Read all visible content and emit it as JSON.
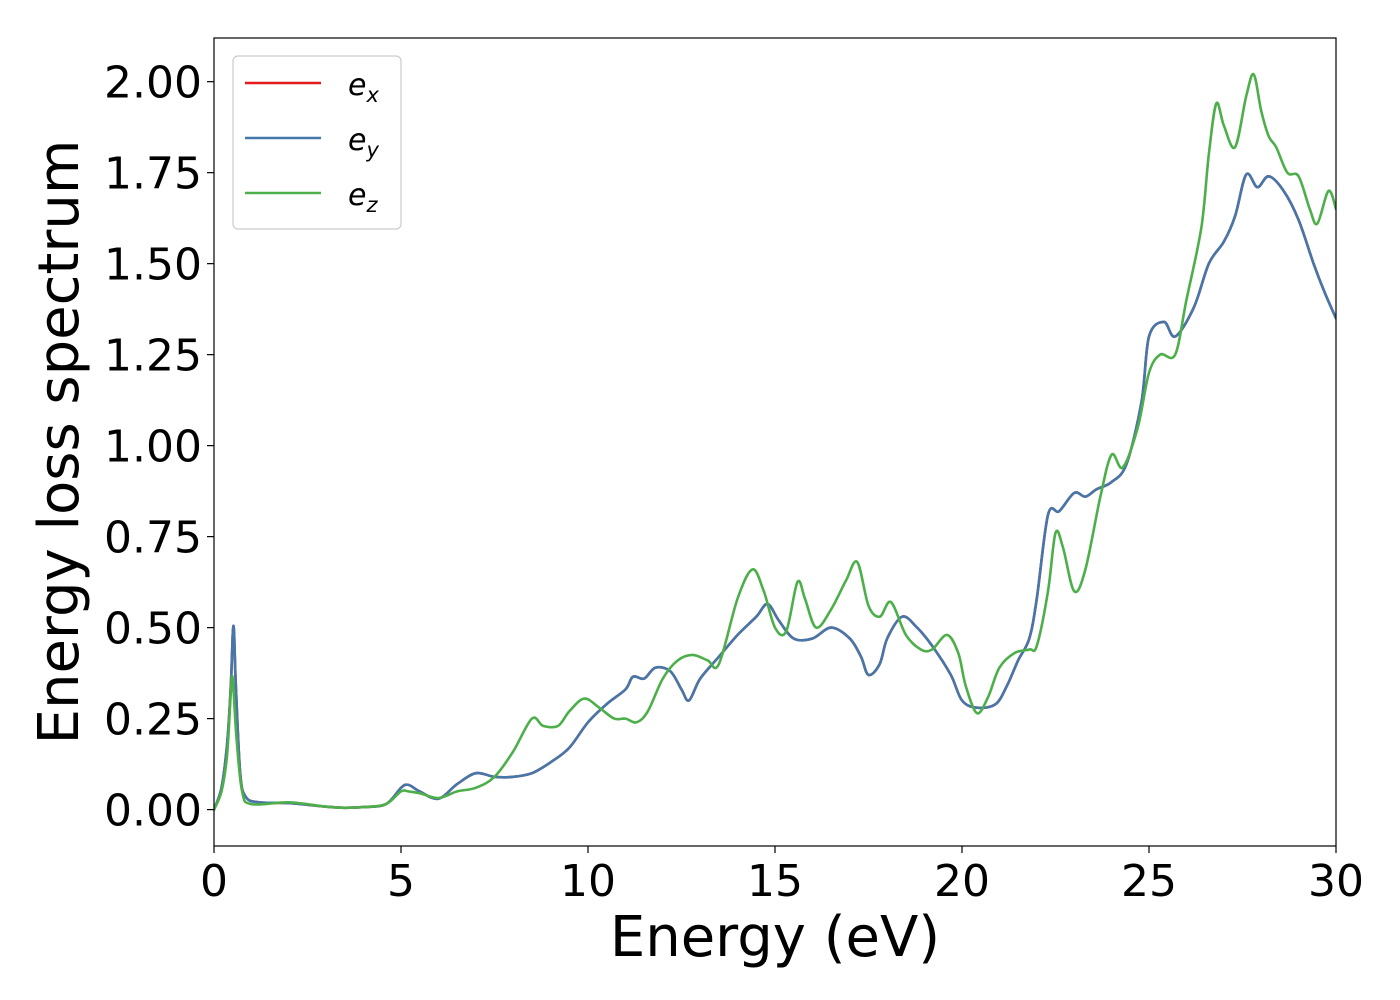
{
  "chart_data": {
    "type": "line",
    "xlabel": "Energy (eV)",
    "ylabel": "Energy loss spectrum",
    "xlim": [
      0,
      30
    ],
    "ylim": [
      -0.1,
      2.12
    ],
    "xticks": [
      0,
      5,
      10,
      15,
      20,
      25,
      30
    ],
    "xtick_labels": [
      "0",
      "5",
      "10",
      "15",
      "20",
      "25",
      "30"
    ],
    "yticks": [
      0,
      0.25,
      0.5,
      0.75,
      1.0,
      1.25,
      1.5,
      1.75,
      2.0
    ],
    "ytick_labels": [
      "0.00",
      "0.25",
      "0.50",
      "0.75",
      "1.00",
      "1.25",
      "1.50",
      "1.75",
      "2.00"
    ],
    "grid": false,
    "legend_position": "top-left",
    "series": [
      {
        "name": "ex",
        "legend_base": "e",
        "legend_sub": "x",
        "color": "#e41a1c",
        "points": [
          [
            0,
            0
          ],
          [
            0.2,
            0.06
          ],
          [
            0.35,
            0.18
          ],
          [
            0.45,
            0.34
          ],
          [
            0.52,
            0.505
          ],
          [
            0.58,
            0.35
          ],
          [
            0.7,
            0.1
          ],
          [
            0.85,
            0.035
          ],
          [
            1.2,
            0.02
          ],
          [
            2,
            0.018
          ],
          [
            3,
            0.008
          ],
          [
            3.5,
            0.005
          ],
          [
            4,
            0.007
          ],
          [
            4.6,
            0.015
          ],
          [
            5.0,
            0.06
          ],
          [
            5.2,
            0.068
          ],
          [
            5.5,
            0.05
          ],
          [
            6.0,
            0.03
          ],
          [
            6.5,
            0.07
          ],
          [
            7.0,
            0.1
          ],
          [
            7.5,
            0.09
          ],
          [
            8.0,
            0.09
          ],
          [
            8.5,
            0.1
          ],
          [
            9.0,
            0.13
          ],
          [
            9.5,
            0.17
          ],
          [
            10.0,
            0.24
          ],
          [
            10.5,
            0.29
          ],
          [
            11.0,
            0.33
          ],
          [
            11.2,
            0.365
          ],
          [
            11.5,
            0.36
          ],
          [
            11.8,
            0.39
          ],
          [
            12.2,
            0.38
          ],
          [
            12.5,
            0.33
          ],
          [
            12.7,
            0.3
          ],
          [
            13.0,
            0.36
          ],
          [
            13.5,
            0.42
          ],
          [
            14.0,
            0.48
          ],
          [
            14.5,
            0.53
          ],
          [
            14.8,
            0.565
          ],
          [
            15.1,
            0.52
          ],
          [
            15.5,
            0.47
          ],
          [
            16.0,
            0.47
          ],
          [
            16.5,
            0.5
          ],
          [
            17.0,
            0.47
          ],
          [
            17.3,
            0.42
          ],
          [
            17.5,
            0.37
          ],
          [
            17.8,
            0.4
          ],
          [
            18.0,
            0.47
          ],
          [
            18.4,
            0.53
          ],
          [
            18.8,
            0.5
          ],
          [
            19.2,
            0.45
          ],
          [
            19.7,
            0.37
          ],
          [
            20.0,
            0.3
          ],
          [
            20.4,
            0.28
          ],
          [
            20.9,
            0.29
          ],
          [
            21.2,
            0.34
          ],
          [
            21.5,
            0.41
          ],
          [
            21.8,
            0.47
          ],
          [
            22.0,
            0.58
          ],
          [
            22.3,
            0.81
          ],
          [
            22.6,
            0.82
          ],
          [
            23.0,
            0.87
          ],
          [
            23.3,
            0.86
          ],
          [
            23.6,
            0.88
          ],
          [
            24.0,
            0.9
          ],
          [
            24.4,
            0.95
          ],
          [
            24.8,
            1.12
          ],
          [
            25.0,
            1.3
          ],
          [
            25.4,
            1.34
          ],
          [
            25.7,
            1.3
          ],
          [
            26.2,
            1.38
          ],
          [
            26.6,
            1.5
          ],
          [
            27.0,
            1.56
          ],
          [
            27.3,
            1.63
          ],
          [
            27.6,
            1.745
          ],
          [
            27.9,
            1.71
          ],
          [
            28.2,
            1.74
          ],
          [
            28.6,
            1.7
          ],
          [
            29.0,
            1.62
          ],
          [
            29.4,
            1.5
          ],
          [
            29.7,
            1.42
          ],
          [
            30.0,
            1.35
          ]
        ]
      },
      {
        "name": "ey",
        "legend_base": "e",
        "legend_sub": "y",
        "color": "#4477aa",
        "points": [
          [
            0,
            0
          ],
          [
            0.2,
            0.06
          ],
          [
            0.35,
            0.18
          ],
          [
            0.45,
            0.34
          ],
          [
            0.52,
            0.505
          ],
          [
            0.58,
            0.35
          ],
          [
            0.7,
            0.1
          ],
          [
            0.85,
            0.035
          ],
          [
            1.2,
            0.02
          ],
          [
            2,
            0.018
          ],
          [
            3,
            0.008
          ],
          [
            3.5,
            0.005
          ],
          [
            4,
            0.007
          ],
          [
            4.6,
            0.015
          ],
          [
            5.0,
            0.06
          ],
          [
            5.2,
            0.068
          ],
          [
            5.5,
            0.05
          ],
          [
            6.0,
            0.03
          ],
          [
            6.5,
            0.07
          ],
          [
            7.0,
            0.1
          ],
          [
            7.5,
            0.09
          ],
          [
            8.0,
            0.09
          ],
          [
            8.5,
            0.1
          ],
          [
            9.0,
            0.13
          ],
          [
            9.5,
            0.17
          ],
          [
            10.0,
            0.24
          ],
          [
            10.5,
            0.29
          ],
          [
            11.0,
            0.33
          ],
          [
            11.2,
            0.365
          ],
          [
            11.5,
            0.36
          ],
          [
            11.8,
            0.39
          ],
          [
            12.2,
            0.38
          ],
          [
            12.5,
            0.33
          ],
          [
            12.7,
            0.3
          ],
          [
            13.0,
            0.36
          ],
          [
            13.5,
            0.42
          ],
          [
            14.0,
            0.48
          ],
          [
            14.5,
            0.53
          ],
          [
            14.8,
            0.565
          ],
          [
            15.1,
            0.52
          ],
          [
            15.5,
            0.47
          ],
          [
            16.0,
            0.47
          ],
          [
            16.5,
            0.5
          ],
          [
            17.0,
            0.47
          ],
          [
            17.3,
            0.42
          ],
          [
            17.5,
            0.37
          ],
          [
            17.8,
            0.4
          ],
          [
            18.0,
            0.47
          ],
          [
            18.4,
            0.53
          ],
          [
            18.8,
            0.5
          ],
          [
            19.2,
            0.45
          ],
          [
            19.7,
            0.37
          ],
          [
            20.0,
            0.3
          ],
          [
            20.4,
            0.28
          ],
          [
            20.9,
            0.29
          ],
          [
            21.2,
            0.34
          ],
          [
            21.5,
            0.41
          ],
          [
            21.8,
            0.47
          ],
          [
            22.0,
            0.58
          ],
          [
            22.3,
            0.81
          ],
          [
            22.6,
            0.82
          ],
          [
            23.0,
            0.87
          ],
          [
            23.3,
            0.86
          ],
          [
            23.6,
            0.88
          ],
          [
            24.0,
            0.9
          ],
          [
            24.4,
            0.95
          ],
          [
            24.8,
            1.12
          ],
          [
            25.0,
            1.3
          ],
          [
            25.4,
            1.34
          ],
          [
            25.7,
            1.3
          ],
          [
            26.2,
            1.38
          ],
          [
            26.6,
            1.5
          ],
          [
            27.0,
            1.56
          ],
          [
            27.3,
            1.63
          ],
          [
            27.6,
            1.745
          ],
          [
            27.9,
            1.71
          ],
          [
            28.2,
            1.74
          ],
          [
            28.6,
            1.7
          ],
          [
            29.0,
            1.62
          ],
          [
            29.4,
            1.5
          ],
          [
            29.7,
            1.42
          ],
          [
            30.0,
            1.35
          ]
        ]
      },
      {
        "name": "ez",
        "legend_base": "e",
        "legend_sub": "z",
        "color": "#4daf4a",
        "points": [
          [
            0,
            0
          ],
          [
            0.2,
            0.05
          ],
          [
            0.35,
            0.15
          ],
          [
            0.45,
            0.32
          ],
          [
            0.5,
            0.36
          ],
          [
            0.6,
            0.2
          ],
          [
            0.75,
            0.05
          ],
          [
            1.0,
            0.015
          ],
          [
            2,
            0.02
          ],
          [
            3,
            0.008
          ],
          [
            3.5,
            0.005
          ],
          [
            4,
            0.007
          ],
          [
            4.6,
            0.015
          ],
          [
            5.0,
            0.05
          ],
          [
            5.2,
            0.05
          ],
          [
            5.5,
            0.045
          ],
          [
            6.0,
            0.032
          ],
          [
            6.5,
            0.05
          ],
          [
            7.0,
            0.06
          ],
          [
            7.5,
            0.09
          ],
          [
            8.0,
            0.16
          ],
          [
            8.5,
            0.25
          ],
          [
            8.8,
            0.23
          ],
          [
            9.2,
            0.23
          ],
          [
            9.5,
            0.27
          ],
          [
            9.9,
            0.305
          ],
          [
            10.3,
            0.28
          ],
          [
            10.7,
            0.25
          ],
          [
            11.0,
            0.25
          ],
          [
            11.3,
            0.24
          ],
          [
            11.6,
            0.27
          ],
          [
            12.0,
            0.36
          ],
          [
            12.4,
            0.41
          ],
          [
            12.8,
            0.425
          ],
          [
            13.2,
            0.41
          ],
          [
            13.5,
            0.4
          ],
          [
            14.0,
            0.58
          ],
          [
            14.4,
            0.66
          ],
          [
            14.7,
            0.6
          ],
          [
            15.0,
            0.5
          ],
          [
            15.3,
            0.49
          ],
          [
            15.6,
            0.625
          ],
          [
            15.8,
            0.58
          ],
          [
            16.1,
            0.5
          ],
          [
            16.5,
            0.55
          ],
          [
            16.9,
            0.63
          ],
          [
            17.2,
            0.68
          ],
          [
            17.5,
            0.56
          ],
          [
            17.8,
            0.53
          ],
          [
            18.1,
            0.57
          ],
          [
            18.5,
            0.48
          ],
          [
            18.9,
            0.44
          ],
          [
            19.2,
            0.44
          ],
          [
            19.6,
            0.48
          ],
          [
            19.9,
            0.43
          ],
          [
            20.1,
            0.34
          ],
          [
            20.4,
            0.265
          ],
          [
            20.7,
            0.31
          ],
          [
            21.0,
            0.39
          ],
          [
            21.4,
            0.43
          ],
          [
            21.8,
            0.44
          ],
          [
            22.0,
            0.45
          ],
          [
            22.3,
            0.6
          ],
          [
            22.5,
            0.76
          ],
          [
            22.7,
            0.72
          ],
          [
            23.0,
            0.6
          ],
          [
            23.3,
            0.66
          ],
          [
            23.7,
            0.86
          ],
          [
            24.0,
            0.975
          ],
          [
            24.3,
            0.94
          ],
          [
            24.7,
            1.05
          ],
          [
            25.0,
            1.2
          ],
          [
            25.3,
            1.25
          ],
          [
            25.7,
            1.25
          ],
          [
            26.0,
            1.4
          ],
          [
            26.4,
            1.6
          ],
          [
            26.6,
            1.8
          ],
          [
            26.8,
            1.94
          ],
          [
            27.0,
            1.88
          ],
          [
            27.3,
            1.82
          ],
          [
            27.6,
            1.96
          ],
          [
            27.8,
            2.02
          ],
          [
            28.0,
            1.92
          ],
          [
            28.2,
            1.85
          ],
          [
            28.4,
            1.82
          ],
          [
            28.7,
            1.75
          ],
          [
            29.0,
            1.74
          ],
          [
            29.3,
            1.65
          ],
          [
            29.5,
            1.61
          ],
          [
            29.8,
            1.7
          ],
          [
            30.0,
            1.65
          ]
        ]
      }
    ]
  }
}
